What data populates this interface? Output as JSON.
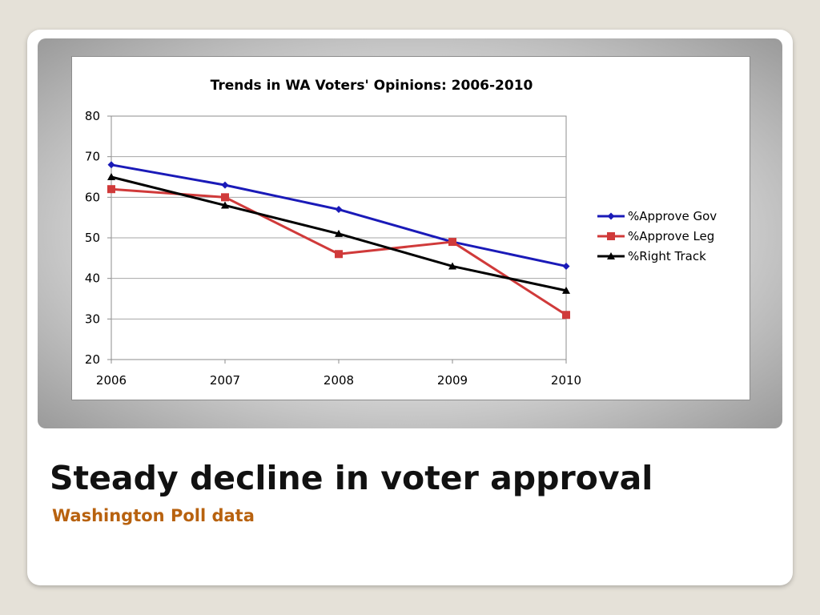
{
  "slide": {
    "title": "Steady decline in voter approval",
    "subtitle": "Washington Poll data"
  },
  "chart_data": {
    "type": "line",
    "title": "Trends in WA Voters' Opinions: 2006-2010",
    "xlabel": "",
    "ylabel": "",
    "x": [
      2006,
      2007,
      2008,
      2009,
      2010
    ],
    "xlim": [
      2006,
      2010
    ],
    "ylim": [
      20,
      80
    ],
    "y_ticks": [
      20,
      30,
      40,
      50,
      60,
      70,
      80
    ],
    "grid": "horizontal",
    "legend_position": "right",
    "series": [
      {
        "name": "%Approve Gov",
        "values": [
          68,
          63,
          57,
          49,
          43
        ],
        "color": "#1a1ab8",
        "marker": "diamond"
      },
      {
        "name": "%Approve Leg",
        "values": [
          62,
          60,
          46,
          49,
          31
        ],
        "color": "#d03a3a",
        "marker": "square"
      },
      {
        "name": "%Right Track",
        "values": [
          65,
          58,
          51,
          43,
          37
        ],
        "color": "#000000",
        "marker": "triangle"
      }
    ]
  }
}
